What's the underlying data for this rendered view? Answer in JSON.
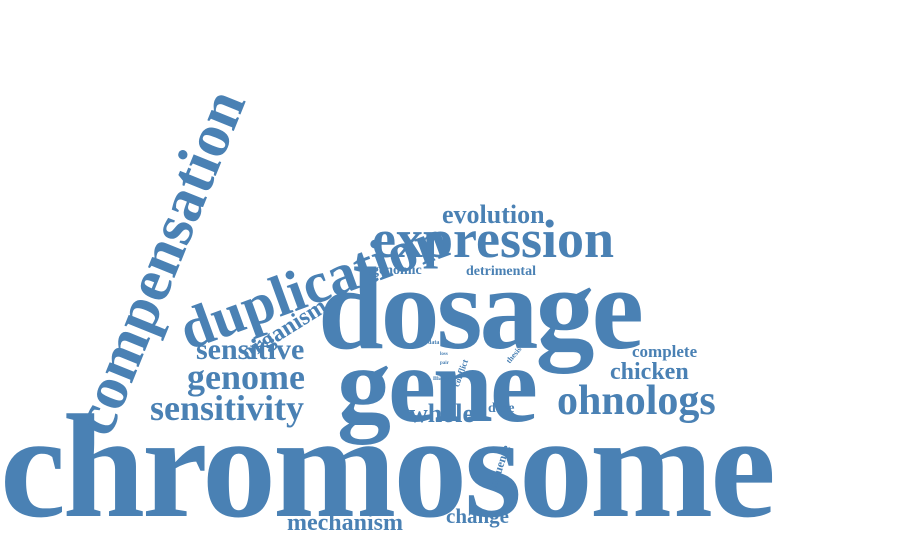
{
  "color": "#4a81b4",
  "words": {
    "chromosome": "chromosome",
    "dosage": "dosage",
    "gene": "gene",
    "compensation": "compensation",
    "expression": "expression",
    "duplication": "duplication",
    "sensitivity": "sensitivity",
    "genome": "genome",
    "sensitive": "sensitive",
    "ohnologs": "ohnologs",
    "evolution": "evolution",
    "organism": "organism",
    "whole": "whole",
    "chicken": "chicken",
    "complete": "complete",
    "mechanism": "mechanism",
    "change": "change",
    "genomic": "genomic",
    "detrimental": "detrimental",
    "dose": "dose",
    "influence": "influence",
    "conflict": "conflict",
    "thesis": "thesis",
    "data": "data",
    "loss": "loss",
    "pair": "pair",
    "many": "many"
  }
}
